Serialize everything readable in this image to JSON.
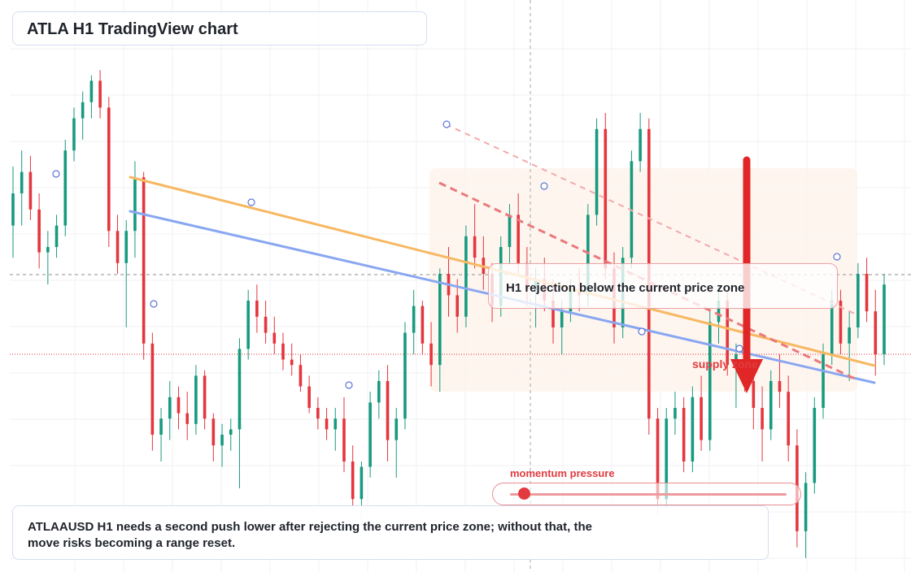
{
  "title": "ATLA H1 TradingView chart",
  "callout": "H1 rejection below the current price zone",
  "note": "ATLAAUSD H1 needs a second push lower after rejecting the current price zone; without that, the move risks becoming a range reset.",
  "momentum": {
    "label": "momentum pressure",
    "value": 0.05
  },
  "supply_label": "supply zone",
  "colors": {
    "bull": "#179a7e",
    "bear": "#e5353d",
    "orange_line": "#f6b862",
    "blue_line": "#89a7f0",
    "dashed_line": "#e9797c",
    "arrow": "#e02626",
    "zone": "#fdf1ea"
  },
  "chart_data": {
    "type": "candlestick",
    "symbol": "ATLAAUSD",
    "timeframe": "H1",
    "price_range": [
      0,
      100
    ],
    "grid": true,
    "candles": [
      {
        "o": 64,
        "h": 75,
        "l": 58,
        "c": 70
      },
      {
        "o": 70,
        "h": 78,
        "l": 64,
        "c": 74
      },
      {
        "o": 74,
        "h": 77,
        "l": 65,
        "c": 67
      },
      {
        "o": 67,
        "h": 70,
        "l": 56,
        "c": 59
      },
      {
        "o": 59,
        "h": 63,
        "l": 53,
        "c": 60
      },
      {
        "o": 60,
        "h": 66,
        "l": 58,
        "c": 64
      },
      {
        "o": 64,
        "h": 80,
        "l": 62,
        "c": 78
      },
      {
        "o": 78,
        "h": 86,
        "l": 76,
        "c": 84
      },
      {
        "o": 84,
        "h": 89,
        "l": 80,
        "c": 87
      },
      {
        "o": 87,
        "h": 92,
        "l": 84,
        "c": 91
      },
      {
        "o": 91,
        "h": 93,
        "l": 84,
        "c": 86
      },
      {
        "o": 86,
        "h": 88,
        "l": 60,
        "c": 63
      },
      {
        "o": 63,
        "h": 66,
        "l": 55,
        "c": 57
      },
      {
        "o": 57,
        "h": 65,
        "l": 45,
        "c": 63
      },
      {
        "o": 63,
        "h": 76,
        "l": 58,
        "c": 73
      },
      {
        "o": 73,
        "h": 74,
        "l": 39,
        "c": 42
      },
      {
        "o": 42,
        "h": 44,
        "l": 22,
        "c": 25
      },
      {
        "o": 25,
        "h": 30,
        "l": 20,
        "c": 28
      },
      {
        "o": 28,
        "h": 35,
        "l": 24,
        "c": 32
      },
      {
        "o": 32,
        "h": 34,
        "l": 26,
        "c": 29
      },
      {
        "o": 29,
        "h": 33,
        "l": 24,
        "c": 27
      },
      {
        "o": 27,
        "h": 38,
        "l": 25,
        "c": 36
      },
      {
        "o": 36,
        "h": 37,
        "l": 26,
        "c": 28
      },
      {
        "o": 28,
        "h": 29,
        "l": 20,
        "c": 23
      },
      {
        "o": 23,
        "h": 27,
        "l": 19,
        "c": 25
      },
      {
        "o": 25,
        "h": 28,
        "l": 22,
        "c": 26
      },
      {
        "o": 26,
        "h": 43,
        "l": 15,
        "c": 41
      },
      {
        "o": 41,
        "h": 52,
        "l": 39,
        "c": 50
      },
      {
        "o": 50,
        "h": 53,
        "l": 44,
        "c": 47
      },
      {
        "o": 47,
        "h": 50,
        "l": 42,
        "c": 44
      },
      {
        "o": 44,
        "h": 47,
        "l": 40,
        "c": 42
      },
      {
        "o": 42,
        "h": 44,
        "l": 37,
        "c": 39
      },
      {
        "o": 39,
        "h": 42,
        "l": 36,
        "c": 38
      },
      {
        "o": 38,
        "h": 40,
        "l": 33,
        "c": 34
      },
      {
        "o": 34,
        "h": 36,
        "l": 29,
        "c": 30
      },
      {
        "o": 30,
        "h": 32,
        "l": 26,
        "c": 28
      },
      {
        "o": 28,
        "h": 30,
        "l": 24,
        "c": 26
      },
      {
        "o": 26,
        "h": 30,
        "l": 22,
        "c": 28
      },
      {
        "o": 28,
        "h": 32,
        "l": 18,
        "c": 20
      },
      {
        "o": 20,
        "h": 23,
        "l": 11,
        "c": 13
      },
      {
        "o": 13,
        "h": 20,
        "l": 9,
        "c": 19
      },
      {
        "o": 19,
        "h": 33,
        "l": 17,
        "c": 31
      },
      {
        "o": 31,
        "h": 37,
        "l": 28,
        "c": 35
      },
      {
        "o": 35,
        "h": 38,
        "l": 20,
        "c": 24
      },
      {
        "o": 24,
        "h": 30,
        "l": 17,
        "c": 28
      },
      {
        "o": 28,
        "h": 46,
        "l": 26,
        "c": 44
      },
      {
        "o": 44,
        "h": 52,
        "l": 40,
        "c": 49
      },
      {
        "o": 49,
        "h": 50,
        "l": 40,
        "c": 42
      },
      {
        "o": 42,
        "h": 46,
        "l": 34,
        "c": 38
      },
      {
        "o": 38,
        "h": 56,
        "l": 33,
        "c": 55
      },
      {
        "o": 55,
        "h": 60,
        "l": 47,
        "c": 51
      },
      {
        "o": 51,
        "h": 54,
        "l": 44,
        "c": 47
      },
      {
        "o": 47,
        "h": 64,
        "l": 45,
        "c": 62
      },
      {
        "o": 62,
        "h": 68,
        "l": 56,
        "c": 58
      },
      {
        "o": 58,
        "h": 62,
        "l": 52,
        "c": 55
      },
      {
        "o": 55,
        "h": 57,
        "l": 46,
        "c": 49
      },
      {
        "o": 49,
        "h": 62,
        "l": 47,
        "c": 60
      },
      {
        "o": 60,
        "h": 68,
        "l": 57,
        "c": 66
      },
      {
        "o": 66,
        "h": 70,
        "l": 55,
        "c": 57
      },
      {
        "o": 57,
        "h": 60,
        "l": 49,
        "c": 52
      },
      {
        "o": 52,
        "h": 56,
        "l": 45,
        "c": 54
      },
      {
        "o": 54,
        "h": 58,
        "l": 48,
        "c": 50
      },
      {
        "o": 50,
        "h": 54,
        "l": 42,
        "c": 45
      },
      {
        "o": 45,
        "h": 50,
        "l": 40,
        "c": 48
      },
      {
        "o": 48,
        "h": 54,
        "l": 46,
        "c": 52
      },
      {
        "o": 52,
        "h": 56,
        "l": 48,
        "c": 51
      },
      {
        "o": 51,
        "h": 68,
        "l": 49,
        "c": 66
      },
      {
        "o": 66,
        "h": 84,
        "l": 64,
        "c": 82
      },
      {
        "o": 82,
        "h": 85,
        "l": 54,
        "c": 56
      },
      {
        "o": 56,
        "h": 59,
        "l": 42,
        "c": 45
      },
      {
        "o": 45,
        "h": 60,
        "l": 43,
        "c": 58
      },
      {
        "o": 58,
        "h": 78,
        "l": 56,
        "c": 76
      },
      {
        "o": 76,
        "h": 85,
        "l": 74,
        "c": 82
      },
      {
        "o": 82,
        "h": 84,
        "l": 25,
        "c": 28
      },
      {
        "o": 28,
        "h": 30,
        "l": 10,
        "c": 13
      },
      {
        "o": 13,
        "h": 30,
        "l": 11,
        "c": 28
      },
      {
        "o": 28,
        "h": 33,
        "l": 25,
        "c": 30
      },
      {
        "o": 30,
        "h": 32,
        "l": 18,
        "c": 20
      },
      {
        "o": 20,
        "h": 34,
        "l": 18,
        "c": 32
      },
      {
        "o": 32,
        "h": 36,
        "l": 22,
        "c": 24
      },
      {
        "o": 24,
        "h": 48,
        "l": 22,
        "c": 46
      },
      {
        "o": 46,
        "h": 53,
        "l": 42,
        "c": 50
      },
      {
        "o": 50,
        "h": 52,
        "l": 36,
        "c": 38
      },
      {
        "o": 38,
        "h": 42,
        "l": 30,
        "c": 40
      },
      {
        "o": 40,
        "h": 46,
        "l": 33,
        "c": 35
      },
      {
        "o": 35,
        "h": 38,
        "l": 26,
        "c": 30
      },
      {
        "o": 30,
        "h": 34,
        "l": 20,
        "c": 26
      },
      {
        "o": 26,
        "h": 37,
        "l": 24,
        "c": 35
      },
      {
        "o": 35,
        "h": 40,
        "l": 30,
        "c": 33
      },
      {
        "o": 33,
        "h": 36,
        "l": 20,
        "c": 23
      },
      {
        "o": 23,
        "h": 26,
        "l": 4,
        "c": 7
      },
      {
        "o": 7,
        "h": 18,
        "l": 2,
        "c": 16
      },
      {
        "o": 16,
        "h": 32,
        "l": 14,
        "c": 30
      },
      {
        "o": 30,
        "h": 42,
        "l": 28,
        "c": 40
      },
      {
        "o": 40,
        "h": 52,
        "l": 38,
        "c": 50
      },
      {
        "o": 50,
        "h": 52,
        "l": 40,
        "c": 42
      },
      {
        "o": 42,
        "h": 48,
        "l": 35,
        "c": 45
      },
      {
        "o": 45,
        "h": 57,
        "l": 43,
        "c": 55
      },
      {
        "o": 55,
        "h": 58,
        "l": 46,
        "c": 48
      },
      {
        "o": 48,
        "h": 52,
        "l": 36,
        "c": 40
      },
      {
        "o": 40,
        "h": 55,
        "l": 38,
        "c": 53
      },
      {
        "o": 53,
        "h": 56,
        "l": 46,
        "c": 48
      },
      {
        "o": 48,
        "h": 54,
        "l": 44,
        "c": 52
      },
      {
        "o": 52,
        "h": 53,
        "l": 40,
        "c": 42
      },
      {
        "o": 42,
        "h": 44,
        "l": 28,
        "c": 30
      },
      {
        "o": 30,
        "h": 34,
        "l": 26,
        "c": 28
      }
    ]
  }
}
